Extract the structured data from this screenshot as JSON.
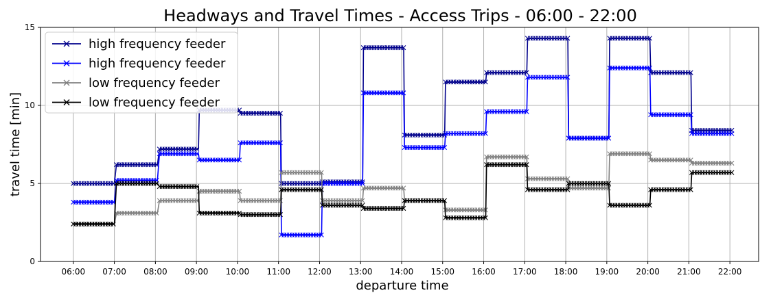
{
  "chart_data": {
    "type": "line",
    "title": "Headways and Travel Times - Access Trips - 06:00 - 22:00",
    "xlabel": "departure time",
    "ylabel": "travel time [min]",
    "x_tick_labels": [
      "06:00",
      "07:00",
      "08:00",
      "09:00",
      "10:00",
      "11:00",
      "12:00",
      "13:00",
      "14:00",
      "15:00",
      "16:00",
      "17:00",
      "18:00",
      "19:00",
      "20:00",
      "21:00",
      "22:00"
    ],
    "x_range_hours": [
      5.2,
      22.7
    ],
    "ylim": [
      0,
      15
    ],
    "y_ticks": [
      0,
      5,
      10,
      15
    ],
    "grid": true,
    "legend_position": "top-left",
    "series": [
      {
        "name": "high frequency feeder",
        "color": "#00008b",
        "steps": [
          [
            6.0,
            7.0,
            5.0
          ],
          [
            7.05,
            8.05,
            6.2
          ],
          [
            8.1,
            9.05,
            7.2
          ],
          [
            9.07,
            10.05,
            9.7
          ],
          [
            10.07,
            11.05,
            9.5
          ],
          [
            11.07,
            12.05,
            5.0
          ],
          [
            12.07,
            13.05,
            5.1
          ],
          [
            13.07,
            14.05,
            13.7
          ],
          [
            14.07,
            15.05,
            8.1
          ],
          [
            15.07,
            16.05,
            11.5
          ],
          [
            16.07,
            17.05,
            12.1
          ],
          [
            17.07,
            18.05,
            14.3
          ],
          [
            18.07,
            19.05,
            7.9
          ],
          [
            19.07,
            20.05,
            14.3
          ],
          [
            20.07,
            21.05,
            12.1
          ],
          [
            21.07,
            22.05,
            8.4
          ]
        ]
      },
      {
        "name": "high frequency feeder",
        "color": "#0000ff",
        "steps": [
          [
            6.0,
            7.0,
            3.8
          ],
          [
            7.05,
            8.05,
            5.2
          ],
          [
            8.1,
            9.05,
            6.9
          ],
          [
            9.07,
            10.05,
            6.5
          ],
          [
            10.07,
            11.05,
            7.6
          ],
          [
            11.07,
            12.05,
            1.7
          ],
          [
            12.07,
            13.05,
            5.0
          ],
          [
            13.07,
            14.05,
            10.8
          ],
          [
            14.07,
            15.05,
            7.3
          ],
          [
            15.07,
            16.05,
            8.2
          ],
          [
            16.07,
            17.05,
            9.6
          ],
          [
            17.07,
            18.05,
            11.8
          ],
          [
            18.07,
            19.05,
            7.9
          ],
          [
            19.07,
            20.05,
            12.4
          ],
          [
            20.07,
            21.05,
            9.4
          ],
          [
            21.07,
            22.05,
            8.2
          ]
        ]
      },
      {
        "name": "low frequency feeder",
        "color": "#808080",
        "steps": [
          [
            6.0,
            7.0,
            2.4
          ],
          [
            7.05,
            8.05,
            3.1
          ],
          [
            8.1,
            9.05,
            3.9
          ],
          [
            9.07,
            10.05,
            4.5
          ],
          [
            10.07,
            11.05,
            3.9
          ],
          [
            11.07,
            12.05,
            5.7
          ],
          [
            12.07,
            13.05,
            3.9
          ],
          [
            13.07,
            14.05,
            4.7
          ],
          [
            14.07,
            15.05,
            3.9
          ],
          [
            15.07,
            16.05,
            3.3
          ],
          [
            16.07,
            17.05,
            6.7
          ],
          [
            17.07,
            18.05,
            5.3
          ],
          [
            18.07,
            19.05,
            4.7
          ],
          [
            19.07,
            20.05,
            6.9
          ],
          [
            20.07,
            21.05,
            6.5
          ],
          [
            21.07,
            22.05,
            6.3
          ]
        ]
      },
      {
        "name": "low frequency feeder",
        "color": "#000000",
        "steps": [
          [
            6.0,
            7.0,
            2.4
          ],
          [
            7.05,
            8.05,
            5.0
          ],
          [
            8.1,
            9.05,
            4.8
          ],
          [
            9.07,
            10.05,
            3.1
          ],
          [
            10.07,
            11.05,
            3.0
          ],
          [
            11.07,
            12.05,
            4.6
          ],
          [
            12.07,
            13.05,
            3.6
          ],
          [
            13.07,
            14.05,
            3.4
          ],
          [
            14.07,
            15.05,
            3.9
          ],
          [
            15.07,
            16.05,
            2.8
          ],
          [
            16.07,
            17.05,
            6.2
          ],
          [
            17.07,
            18.05,
            4.6
          ],
          [
            18.07,
            19.05,
            5.0
          ],
          [
            19.07,
            20.05,
            3.6
          ],
          [
            20.07,
            21.05,
            4.6
          ],
          [
            21.07,
            22.05,
            5.7
          ]
        ]
      }
    ]
  }
}
